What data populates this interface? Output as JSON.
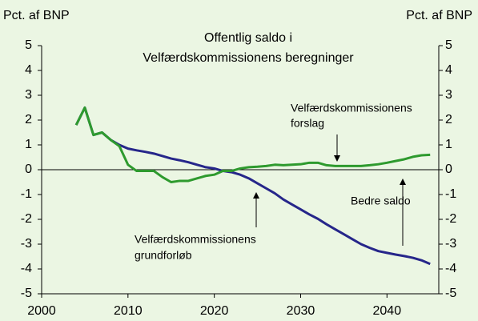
{
  "chart_data": {
    "type": "line",
    "title": [
      "Offentlig saldo i",
      "Velfærdskommissionens beregninger"
    ],
    "ylabel": "Pct. af BNP",
    "y2label": "Pct. af BNP",
    "x": [
      2004,
      2005,
      2006,
      2007,
      2008,
      2009,
      2010,
      2011,
      2012,
      2013,
      2014,
      2015,
      2016,
      2017,
      2018,
      2019,
      2020,
      2021,
      2022,
      2023,
      2024,
      2025,
      2026,
      2027,
      2028,
      2029,
      2030,
      2031,
      2032,
      2033,
      2034,
      2035,
      2036,
      2037,
      2038,
      2039,
      2040,
      2041,
      2042,
      2043,
      2044,
      2045
    ],
    "series": [
      {
        "color": "#26268a",
        "values": [
          1.8,
          2.5,
          1.4,
          1.5,
          1.2,
          1.0,
          0.85,
          0.78,
          0.72,
          0.65,
          0.55,
          0.45,
          0.38,
          0.3,
          0.2,
          0.1,
          0.05,
          -0.05,
          -0.1,
          -0.2,
          -0.35,
          -0.55,
          -0.75,
          -0.95,
          -1.2,
          -1.4,
          -1.6,
          -1.8,
          -1.98,
          -2.2,
          -2.4,
          -2.6,
          -2.8,
          -3.0,
          -3.15,
          -3.28,
          -3.35,
          -3.42,
          -3.48,
          -3.55,
          -3.65,
          -3.8
        ]
      },
      {
        "color": "#2e9a2e",
        "values": [
          1.8,
          2.5,
          1.4,
          1.5,
          1.2,
          0.95,
          0.2,
          -0.05,
          -0.05,
          -0.05,
          -0.3,
          -0.5,
          -0.45,
          -0.45,
          -0.35,
          -0.25,
          -0.2,
          -0.05,
          -0.05,
          0.05,
          0.1,
          0.12,
          0.15,
          0.2,
          0.18,
          0.2,
          0.22,
          0.28,
          0.28,
          0.18,
          0.15,
          0.15,
          0.15,
          0.15,
          0.18,
          0.22,
          0.28,
          0.35,
          0.42,
          0.52,
          0.58,
          0.6
        ]
      }
    ],
    "annotations": [
      {
        "lines": [
          "Velfærdskommissionens",
          "forslag"
        ]
      },
      {
        "lines": [
          "Velfærdskommissionens",
          "grundforløb"
        ]
      },
      {
        "lines": [
          "Bedre saldo"
        ]
      }
    ],
    "xlim": [
      2000,
      2046
    ],
    "xticks": [
      2000,
      2010,
      2020,
      2030,
      2040
    ],
    "ylim": [
      -5,
      5
    ],
    "yticks": [
      -5,
      -4,
      -3,
      -2,
      -1,
      0,
      1,
      2,
      3,
      4,
      5
    ],
    "y2lim": [
      -5,
      5
    ],
    "y2ticks": [
      -5,
      -4,
      -3,
      -2,
      -1,
      0,
      1,
      2,
      3,
      4,
      5
    ]
  }
}
